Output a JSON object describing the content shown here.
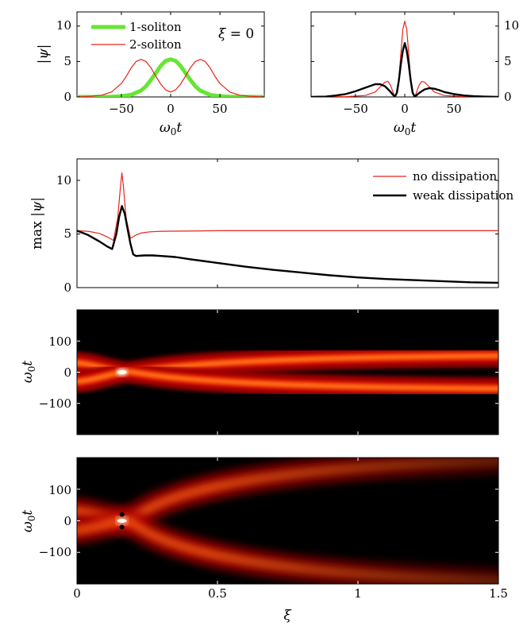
{
  "chart_data": [
    {
      "type": "line",
      "panel": "top-left",
      "xlabel": "ω₀t",
      "ylabel": "|ψ|",
      "xlim": [
        -95,
        95
      ],
      "ylim": [
        0,
        12
      ],
      "xticks": [
        "−50",
        "0",
        "50"
      ],
      "yticks": [
        "0",
        "5",
        "10"
      ],
      "annotation": "ξ = 0",
      "legend_position": "top-left",
      "series": [
        {
          "name": "1-soliton",
          "color": "#66e633",
          "x": [
            -95,
            -80,
            -70,
            -60,
            -50,
            -40,
            -30,
            -25,
            -20,
            -15,
            -10,
            -5,
            0,
            5,
            10,
            15,
            20,
            25,
            30,
            40,
            50,
            60,
            70,
            80,
            95
          ],
          "y": [
            0,
            0,
            0.01,
            0.03,
            0.1,
            0.3,
            0.9,
            1.5,
            2.4,
            3.4,
            4.4,
            5.1,
            5.3,
            5.1,
            4.4,
            3.4,
            2.4,
            1.5,
            0.9,
            0.3,
            0.1,
            0.03,
            0.01,
            0,
            0
          ]
        },
        {
          "name": "2-soliton",
          "color": "#e8251b",
          "x": [
            -95,
            -80,
            -70,
            -60,
            -50,
            -45,
            -40,
            -35,
            -30,
            -25,
            -20,
            -15,
            -10,
            -5,
            0,
            5,
            10,
            15,
            20,
            25,
            30,
            35,
            40,
            45,
            50,
            60,
            70,
            80,
            95
          ],
          "y": [
            0,
            0.1,
            0.25,
            0.7,
            1.9,
            2.9,
            4.1,
            5.0,
            5.3,
            5.0,
            4.1,
            2.9,
            1.8,
            1.0,
            0.7,
            1.0,
            1.8,
            2.9,
            4.1,
            5.0,
            5.3,
            5.0,
            4.1,
            2.9,
            1.9,
            0.7,
            0.25,
            0.1,
            0
          ]
        }
      ]
    },
    {
      "type": "line",
      "panel": "top-right",
      "xlabel": "ω₀t",
      "ylabel": "",
      "xlim": [
        -95,
        95
      ],
      "ylim": [
        0,
        12
      ],
      "xticks": [
        "−50",
        "0",
        "50"
      ],
      "yticks": [
        "0",
        "5",
        "10"
      ],
      "series": [
        {
          "color": "#e8251b",
          "x": [
            -95,
            -60,
            -40,
            -30,
            -25,
            -20,
            -17,
            -14,
            -11,
            -9,
            -6,
            -4,
            -2,
            0,
            2,
            4,
            6,
            9,
            11,
            14,
            17,
            20,
            25,
            30,
            40,
            60,
            95
          ],
          "y": [
            0,
            0.05,
            0.2,
            0.7,
            1.4,
            2.1,
            2.2,
            1.5,
            0.3,
            0.2,
            2.5,
            6.0,
            9.5,
            10.7,
            9.5,
            6.0,
            2.5,
            0.2,
            0.3,
            1.5,
            2.2,
            2.1,
            1.4,
            0.7,
            0.2,
            0.05,
            0
          ]
        },
        {
          "color": "#000000",
          "x": [
            -95,
            -80,
            -70,
            -60,
            -50,
            -40,
            -30,
            -25,
            -20,
            -15,
            -12,
            -10,
            -8,
            -6,
            -4,
            -2,
            0,
            2,
            4,
            6,
            8,
            10,
            12,
            15,
            20,
            25,
            30,
            35,
            40,
            50,
            60,
            70,
            80,
            95
          ],
          "y": [
            0,
            0.05,
            0.2,
            0.4,
            0.8,
            1.3,
            1.8,
            1.8,
            1.5,
            0.8,
            0.3,
            0.05,
            0.6,
            2.3,
            4.6,
            6.5,
            7.6,
            6.5,
            4.6,
            2.3,
            0.6,
            0.05,
            0.25,
            0.6,
            1.05,
            1.25,
            1.15,
            0.95,
            0.7,
            0.4,
            0.2,
            0.1,
            0.05,
            0
          ]
        }
      ]
    },
    {
      "type": "line",
      "panel": "middle",
      "xlabel": "",
      "ylabel": "max |ψ|",
      "xlim": [
        0,
        1.5
      ],
      "ylim": [
        0,
        12
      ],
      "yticks": [
        "0",
        "5",
        "10"
      ],
      "legend_position": "top-right",
      "series": [
        {
          "name": "no dissipation",
          "color": "#e8251b",
          "x": [
            0,
            0.04,
            0.08,
            0.11,
            0.13,
            0.145,
            0.155,
            0.16,
            0.165,
            0.175,
            0.19,
            0.21,
            0.23,
            0.26,
            0.3,
            0.5,
            1.0,
            1.5
          ],
          "y": [
            5.3,
            5.25,
            5.05,
            4.7,
            4.4,
            6.5,
            9.5,
            10.7,
            9.5,
            6.5,
            4.6,
            4.9,
            5.1,
            5.2,
            5.25,
            5.3,
            5.3,
            5.3
          ]
        },
        {
          "name": "weak dissipation",
          "color": "#000000",
          "x": [
            0,
            0.04,
            0.08,
            0.11,
            0.125,
            0.14,
            0.15,
            0.16,
            0.17,
            0.18,
            0.19,
            0.2,
            0.21,
            0.24,
            0.27,
            0.3,
            0.35,
            0.4,
            0.5,
            0.6,
            0.7,
            0.8,
            0.9,
            1.0,
            1.1,
            1.2,
            1.3,
            1.4,
            1.5
          ],
          "y": [
            5.3,
            4.9,
            4.3,
            3.8,
            3.6,
            5.0,
            6.6,
            7.6,
            6.9,
            5.5,
            4.1,
            3.1,
            2.95,
            3.0,
            3.0,
            2.95,
            2.85,
            2.65,
            2.3,
            1.95,
            1.65,
            1.4,
            1.15,
            0.95,
            0.8,
            0.7,
            0.6,
            0.5,
            0.45
          ]
        }
      ]
    },
    {
      "type": "heatmap",
      "panel": "upper-heatmap",
      "xlabel": "",
      "ylabel": "ω₀t",
      "xlim": [
        0,
        1.5
      ],
      "ylim": [
        -200,
        200
      ],
      "yticks": [
        "100",
        "0",
        "−100"
      ],
      "description_values": {
        "collision_xi": 0.16,
        "upper_track_end": 53,
        "lower_track_end": -53,
        "start_separation": 31
      }
    },
    {
      "type": "heatmap",
      "panel": "lower-heatmap",
      "xlabel": "ξ",
      "ylabel": "ω₀t",
      "xlim": [
        0,
        1.5
      ],
      "ylim": [
        -200,
        200
      ],
      "xticks": [
        "0",
        "0.5",
        "1",
        "1.5"
      ],
      "yticks": [
        "100",
        "0",
        "−100"
      ],
      "description_values": {
        "collision_xi": 0.16,
        "upper_track_end": 190,
        "lower_track_end": -190,
        "start_separation": 31
      }
    }
  ]
}
